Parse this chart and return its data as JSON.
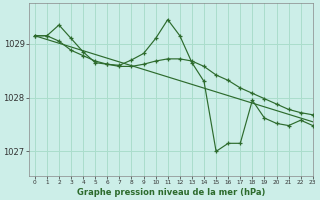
{
  "title": "Graphe pression niveau de la mer (hPa)",
  "background_color": "#cceee8",
  "grid_color": "#aaddcc",
  "line_color": "#2d6b2d",
  "xlim": [
    -0.5,
    23
  ],
  "ylim": [
    1026.55,
    1029.75
  ],
  "yticks": [
    1027,
    1028,
    1029
  ],
  "xticks": [
    0,
    1,
    2,
    3,
    4,
    5,
    6,
    7,
    8,
    9,
    10,
    11,
    12,
    13,
    14,
    15,
    16,
    17,
    18,
    19,
    20,
    21,
    22,
    23
  ],
  "line1_x": [
    0,
    1,
    2,
    3,
    4,
    5,
    6,
    7,
    8,
    9,
    10,
    11,
    12,
    13,
    14,
    15,
    16,
    17,
    18,
    19,
    20,
    21,
    22,
    23
  ],
  "line1_y": [
    1029.15,
    1029.15,
    1029.35,
    1029.1,
    1028.85,
    1028.65,
    1028.62,
    1028.6,
    1028.7,
    1028.82,
    1029.1,
    1029.45,
    1029.15,
    1028.65,
    1028.3,
    1027.0,
    1027.15,
    1027.15,
    1027.95,
    1027.62,
    1027.52,
    1027.48,
    1027.58,
    1027.48
  ],
  "line2_x": [
    0,
    1,
    2,
    3,
    4,
    5,
    6,
    7,
    8,
    9,
    10,
    11,
    12,
    13,
    14,
    15,
    16,
    17,
    18,
    19,
    20,
    21,
    22,
    23
  ],
  "line2_y": [
    1029.15,
    1029.15,
    1029.05,
    1028.88,
    1028.78,
    1028.68,
    1028.62,
    1028.58,
    1028.58,
    1028.62,
    1028.68,
    1028.72,
    1028.72,
    1028.68,
    1028.58,
    1028.42,
    1028.32,
    1028.18,
    1028.08,
    1027.98,
    1027.88,
    1027.78,
    1027.72,
    1027.68
  ],
  "line3_x": [
    0,
    23
  ],
  "line3_y": [
    1029.15,
    1027.55
  ]
}
